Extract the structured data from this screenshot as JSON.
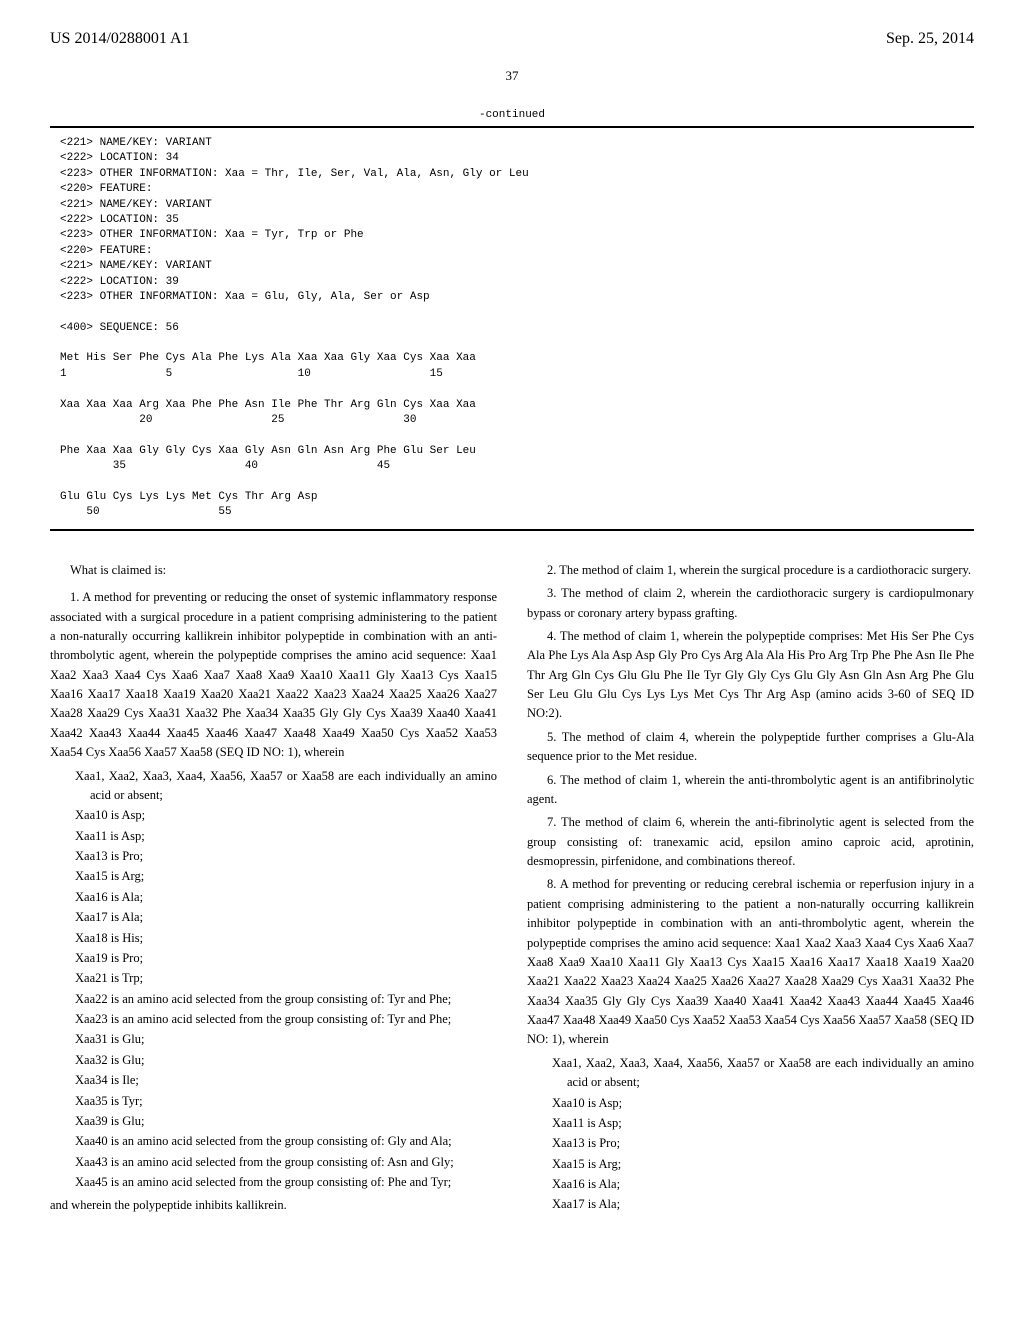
{
  "header": {
    "publication_number": "US 2014/0288001 A1",
    "publication_date": "Sep. 25, 2014",
    "page_number": "37",
    "continued_label": "-continued"
  },
  "sequence": {
    "annotations": "<221> NAME/KEY: VARIANT\n<222> LOCATION: 34\n<223> OTHER INFORMATION: Xaa = Thr, Ile, Ser, Val, Ala, Asn, Gly or Leu\n<220> FEATURE:\n<221> NAME/KEY: VARIANT\n<222> LOCATION: 35\n<223> OTHER INFORMATION: Xaa = Tyr, Trp or Phe\n<220> FEATURE:\n<221> NAME/KEY: VARIANT\n<222> LOCATION: 39\n<223> OTHER INFORMATION: Xaa = Glu, Gly, Ala, Ser or Asp\n\n<400> SEQUENCE: 56\n\nMet His Ser Phe Cys Ala Phe Lys Ala Xaa Xaa Gly Xaa Cys Xaa Xaa\n1               5                   10                  15\n\nXaa Xaa Xaa Arg Xaa Phe Phe Asn Ile Phe Thr Arg Gln Cys Xaa Xaa\n            20                  25                  30\n\nPhe Xaa Xaa Gly Gly Cys Xaa Gly Asn Gln Asn Arg Phe Glu Ser Leu\n        35                  40                  45\n\nGlu Glu Cys Lys Lys Met Cys Thr Arg Asp\n    50                  55"
  },
  "claims": {
    "intro": "What is claimed is:",
    "c1": {
      "text": "1. A method for preventing or reducing the onset of systemic inflammatory response associated with a surgical procedure in a patient comprising administering to the patient a non-naturally occurring kallikrein inhibitor polypeptide in combination with an anti-thrombolytic agent, wherein the polypeptide comprises the amino acid sequence: Xaa1 Xaa2 Xaa3 Xaa4 Cys Xaa6 Xaa7 Xaa8 Xaa9 Xaa10 Xaa11 Gly Xaa13 Cys Xaa15 Xaa16 Xaa17 Xaa18 Xaa19 Xaa20 Xaa21 Xaa22 Xaa23 Xaa24 Xaa25 Xaa26 Xaa27 Xaa28 Xaa29 Cys Xaa31 Xaa32 Phe Xaa34 Xaa35 Gly Gly Cys Xaa39 Xaa40 Xaa41 Xaa42 Xaa43 Xaa44 Xaa45 Xaa46 Xaa47 Xaa48 Xaa49 Xaa50 Cys Xaa52 Xaa53 Xaa54 Cys Xaa56 Xaa57 Xaa58 (SEQ ID NO: 1), wherein",
      "subs": [
        "Xaa1, Xaa2, Xaa3, Xaa4, Xaa56, Xaa57 or Xaa58 are each individually an amino acid or absent;",
        "Xaa10 is Asp;",
        "Xaa11 is Asp;",
        "Xaa13 is Pro;",
        "Xaa15 is Arg;",
        "Xaa16 is Ala;",
        "Xaa17 is Ala;",
        "Xaa18 is His;",
        "Xaa19 is Pro;",
        "Xaa21 is Trp;",
        "Xaa22 is an amino acid selected from the group consisting of: Tyr and Phe;",
        "Xaa23 is an amino acid selected from the group consisting of: Tyr and Phe;",
        "Xaa31 is Glu;",
        "Xaa32 is Glu;",
        "Xaa34 is Ile;",
        "Xaa35 is Tyr;",
        "Xaa39 is Glu;",
        "Xaa40 is an amino acid selected from the group consisting of: Gly and Ala;",
        "Xaa43 is an amino acid selected from the group consisting of: Asn and Gly;",
        "Xaa45 is an amino acid selected from the group consisting of: Phe and Tyr;"
      ],
      "final": "and wherein the polypeptide inhibits kallikrein."
    },
    "c2": "2. The method of claim 1, wherein the surgical procedure is a cardiothoracic surgery.",
    "c3": "3. The method of claim 2, wherein the cardiothoracic surgery is cardiopulmonary bypass or coronary artery bypass grafting.",
    "c4": "4. The method of claim 1, wherein the polypeptide comprises: Met His Ser Phe Cys Ala Phe Lys Ala Asp Asp Gly Pro Cys Arg Ala Ala His Pro Arg Trp Phe Phe Asn Ile Phe Thr Arg Gln Cys Glu Glu Phe Ile Tyr Gly Gly Cys Glu Gly Asn Gln Asn Arg Phe Glu Ser Leu Glu Glu Cys Lys Lys Met Cys Thr Arg Asp (amino acids 3-60 of SEQ ID NO:2).",
    "c5": "5. The method of claim 4, wherein the polypeptide further comprises a Glu-Ala sequence prior to the Met residue.",
    "c6": "6. The method of claim 1, wherein the anti-thrombolytic agent is an antifibrinolytic agent.",
    "c7": "7. The method of claim 6, wherein the anti-fibrinolytic agent is selected from the group consisting of: tranexamic acid, epsilon amino caproic acid, aprotinin, desmopressin, pirfenidone, and combinations thereof.",
    "c8": {
      "text": "8. A method for preventing or reducing cerebral ischemia or reperfusion injury in a patient comprising administering to the patient a non-naturally occurring kallikrein inhibitor polypeptide in combination with an anti-thrombolytic agent, wherein the polypeptide comprises the amino acid sequence: Xaa1 Xaa2 Xaa3 Xaa4 Cys Xaa6 Xaa7 Xaa8 Xaa9 Xaa10 Xaa11 Gly Xaa13 Cys Xaa15 Xaa16 Xaa17 Xaa18 Xaa19 Xaa20 Xaa21 Xaa22 Xaa23 Xaa24 Xaa25 Xaa26 Xaa27 Xaa28 Xaa29 Cys Xaa31 Xaa32 Phe Xaa34 Xaa35 Gly Gly Cys Xaa39 Xaa40 Xaa41 Xaa42 Xaa43 Xaa44 Xaa45 Xaa46 Xaa47 Xaa48 Xaa49 Xaa50 Cys Xaa52 Xaa53 Xaa54 Cys Xaa56 Xaa57 Xaa58 (SEQ ID NO: 1), wherein",
      "subs": [
        "Xaa1, Xaa2, Xaa3, Xaa4, Xaa56, Xaa57 or Xaa58 are each individually an amino acid or absent;",
        "Xaa10 is Asp;",
        "Xaa11 is Asp;",
        "Xaa13 is Pro;",
        "Xaa15 is Arg;",
        "Xaa16 is Ala;",
        "Xaa17 is Ala;"
      ]
    }
  }
}
